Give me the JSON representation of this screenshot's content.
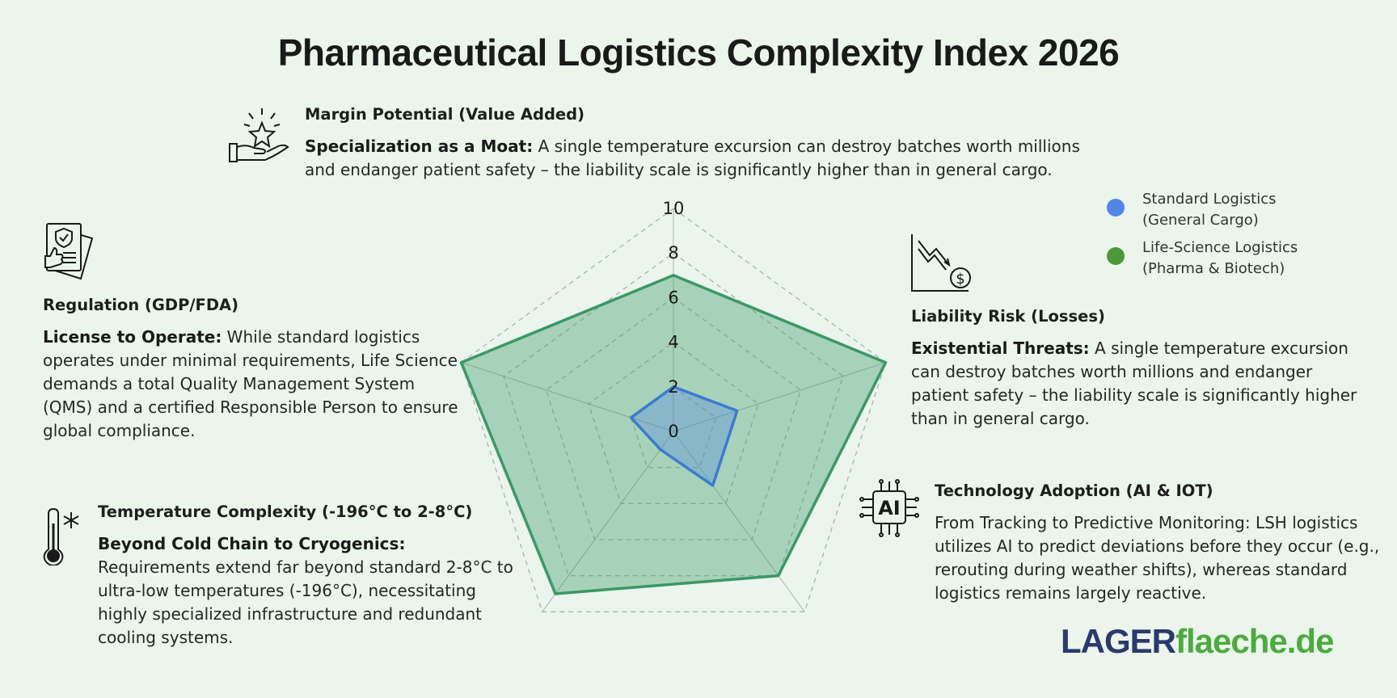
{
  "title": "Pharmaceutical Logistics Complexity Index 2026",
  "colors": {
    "background": "#ebf5ec",
    "standard": "#4f86e8",
    "lifescience": "#3b9866",
    "logo_primary": "#2a3a6e",
    "logo_secondary": "#4caa3e"
  },
  "blocks": {
    "margin": {
      "heading": "Margin Potential (Value Added)",
      "lead": "Specialization as a Moat:",
      "text": " A single temperature excursion can destroy batches worth millions and endanger patient safety – the liability scale is significantly higher than in general cargo."
    },
    "regulation": {
      "heading": "Regulation (GDP/FDA)",
      "lead": "License to Operate:",
      "text": " While standard logistics operates under minimal requirements, Life Science demands a total Quality Management System (QMS) and a certified Responsible Person to ensure global compliance."
    },
    "liability": {
      "heading": "Liability Risk (Losses)",
      "lead": "Existential Threats:",
      "text": " A single temperature excursion can destroy batches worth millions and endanger patient safety – the liability scale is significantly higher than in general cargo."
    },
    "technology": {
      "heading": "Technology Adoption (AI & IOT)",
      "text": "From Tracking to Predictive Monitoring: LSH logistics utilizes AI to predict deviations before they occur (e.g., rerouting during weather shifts), whereas standard logistics remains largely reactive."
    },
    "temperature": {
      "heading": "Temperature Complexity (-196°C to 2-8°C)",
      "lead": "Beyond Cold Chain to Cryogenics:",
      "text": " Requirements extend far beyond standard 2-8°C to ultra-low temperatures (-196°C), necessitating highly specialized infrastructure and redundant cooling systems."
    }
  },
  "icons": {
    "margin": "hand-star-icon",
    "regulation": "certified-document-icon",
    "liability": "declining-chart-dollar-icon",
    "technology": "ai-chip-icon",
    "temperature": "thermometer-snowflake-icon"
  },
  "legend": {
    "standard": "Standard Logistics (General Cargo)",
    "lifescience": "Life-Science Logistics (Pharma & Biotech)"
  },
  "logo": {
    "part1": "LAGER",
    "part2": "flaeche.de"
  },
  "chart_data": {
    "type": "radar",
    "axes": [
      "Margin Potential",
      "Liability Risk",
      "Technology Adoption",
      "Temperature Complexity",
      "Regulation"
    ],
    "range": [
      0,
      10
    ],
    "ticks": [
      0,
      2,
      4,
      6,
      8,
      10
    ],
    "grid": true,
    "legend_position": "top-right",
    "series": [
      {
        "name": "Standard Logistics (General Cargo)",
        "values": [
          2,
          3,
          3,
          1,
          2
        ]
      },
      {
        "name": "Life-Science Logistics (Pharma & Biotech)",
        "values": [
          7,
          10,
          8,
          9,
          10
        ]
      }
    ]
  }
}
